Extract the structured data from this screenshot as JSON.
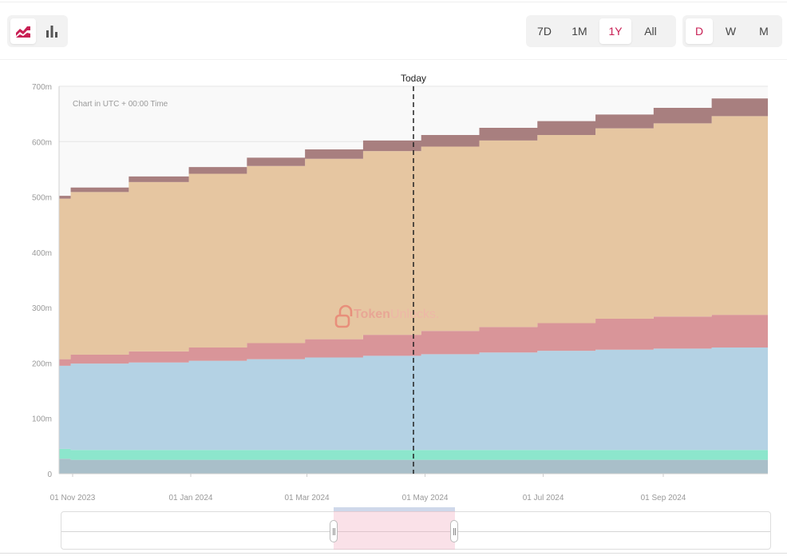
{
  "toolbar": {
    "chart_modes": [
      {
        "icon": "area-chart-icon",
        "active": true
      },
      {
        "icon": "bar-chart-icon",
        "active": false
      }
    ],
    "ranges": [
      "7D",
      "1M",
      "1Y",
      "All"
    ],
    "active_range": "1Y",
    "granularity": [
      "D",
      "W",
      "M"
    ],
    "active_granularity": "D",
    "accent_color": "#c81f54"
  },
  "chart_note": "Chart in UTC + 00:00 Time",
  "watermark": {
    "part1": "Token",
    "part2": "Unlocks."
  },
  "today_label": "Today",
  "chart_data": {
    "type": "area",
    "stacked": true,
    "step": true,
    "yticks": [
      "0",
      "100m",
      "200m",
      "300m",
      "400m",
      "500m",
      "600m",
      "700m"
    ],
    "ylim": [
      0,
      700
    ],
    "xlim": [
      "2023-10-25",
      "2024-10-25"
    ],
    "xticks": [
      {
        "label": "01 Nov 2023",
        "date": "2023-11-01"
      },
      {
        "label": "01 Jan 2024",
        "date": "2024-01-01"
      },
      {
        "label": "01 Mar 2024",
        "date": "2024-03-01"
      },
      {
        "label": "01 May 2024",
        "date": "2024-05-01"
      },
      {
        "label": "01 Jul 2024",
        "date": "2024-07-01"
      },
      {
        "label": "01 Sep 2024",
        "date": "2024-09-01"
      }
    ],
    "today": "2024-04-25",
    "x": [
      "2023-10-25",
      "2023-10-31",
      "2023-11-30",
      "2023-12-31",
      "2024-01-30",
      "2024-02-29",
      "2024-03-30",
      "2024-04-29",
      "2024-05-29",
      "2024-06-28",
      "2024-07-28",
      "2024-08-27",
      "2024-09-26",
      "2024-10-25"
    ],
    "series": [
      {
        "color": "#a9bfc9",
        "values": [
          27,
          25,
          25,
          25,
          25,
          25,
          25,
          25,
          25,
          25,
          25,
          25,
          25,
          25
        ]
      },
      {
        "color": "#8ce6cc",
        "values": [
          18,
          18,
          18,
          18,
          18,
          18,
          18,
          18,
          18,
          18,
          18,
          18,
          18,
          18
        ]
      },
      {
        "color": "#b4d2e4",
        "values": [
          150,
          156,
          158,
          161,
          164,
          167,
          170,
          173,
          176,
          179,
          181,
          183,
          185,
          187
        ]
      },
      {
        "color": "#d99599",
        "values": [
          12,
          16,
          20,
          24,
          29,
          33,
          38,
          42,
          46,
          50,
          56,
          58,
          59,
          62
        ]
      },
      {
        "color": "#e6c6a1",
        "values": [
          290,
          294,
          306,
          314,
          320,
          326,
          332,
          333,
          337,
          340,
          344,
          349,
          359,
          368
        ]
      },
      {
        "color": "#a87f7f",
        "values": [
          5,
          8,
          10,
          12,
          15,
          17,
          19,
          21,
          23,
          25,
          25,
          28,
          32,
          34
        ]
      }
    ]
  }
}
